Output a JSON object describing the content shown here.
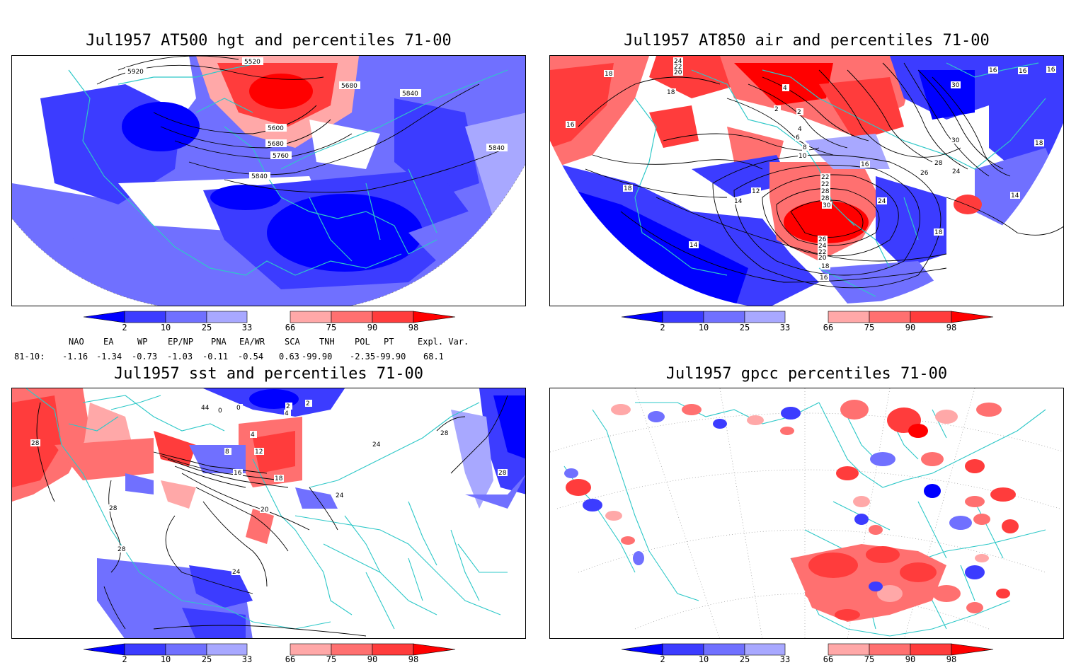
{
  "colors": {
    "blue_2": "#0000ff",
    "blue_10": "#3c3cff",
    "blue_25": "#7070ff",
    "blue_33": "#a8a8ff",
    "red_66": "#ffa8a8",
    "red_75": "#ff7070",
    "red_90": "#ff3c3c",
    "red_98": "#ff0000",
    "coastline": "#2ec8c8",
    "contour": "#000000"
  },
  "panels": [
    {
      "title": "Jul1957 AT500 hgt and percentiles 71-00",
      "contour_labels": [
        "5520",
        "5920",
        "5680",
        "5840",
        "5600",
        "5680",
        "5760",
        "5840",
        "5840"
      ]
    },
    {
      "title": "Jul1957 AT850 air and percentiles 71-00",
      "contour_labels": [
        "24",
        "22",
        "20",
        "18",
        "18",
        "16",
        "4",
        "2",
        "2",
        "4",
        "6",
        "8",
        "10",
        "30",
        "30",
        "16",
        "16",
        "16",
        "18",
        "16",
        "28",
        "26",
        "24",
        "22",
        "22",
        "28",
        "28",
        "12",
        "14",
        "18",
        "24",
        "30",
        "14",
        "26",
        "24",
        "22",
        "20",
        "18",
        "16",
        "18",
        "14"
      ]
    },
    {
      "title": "Jul1957 sst and percentiles 71-00",
      "contour_labels": [
        "28",
        "44",
        "0",
        "0",
        "2",
        "4",
        "2",
        "4",
        "8",
        "12",
        "16",
        "18",
        "20",
        "24",
        "28",
        "28",
        "28",
        "24",
        "24",
        "28"
      ]
    },
    {
      "title": "Jul1957 gpcc percentiles 71-00",
      "contour_labels": []
    }
  ],
  "colorbar_ticks": [
    "2",
    "10",
    "25",
    "33",
    "66",
    "75",
    "90",
    "98"
  ],
  "teleconnections": {
    "headers": [
      "NAO",
      "EA",
      "WP",
      "EP/NP",
      "PNA",
      "EA/WR",
      "SCA",
      "TNH",
      "POL",
      "PT",
      "Expl. Var."
    ],
    "row_label": "81-10:",
    "values": [
      "-1.16",
      "-1.34",
      "-0.73",
      "-1.03",
      "-0.11",
      "-0.54",
      "0.63",
      "-99.90",
      "-2.35",
      "-99.90",
      "68.1"
    ]
  }
}
